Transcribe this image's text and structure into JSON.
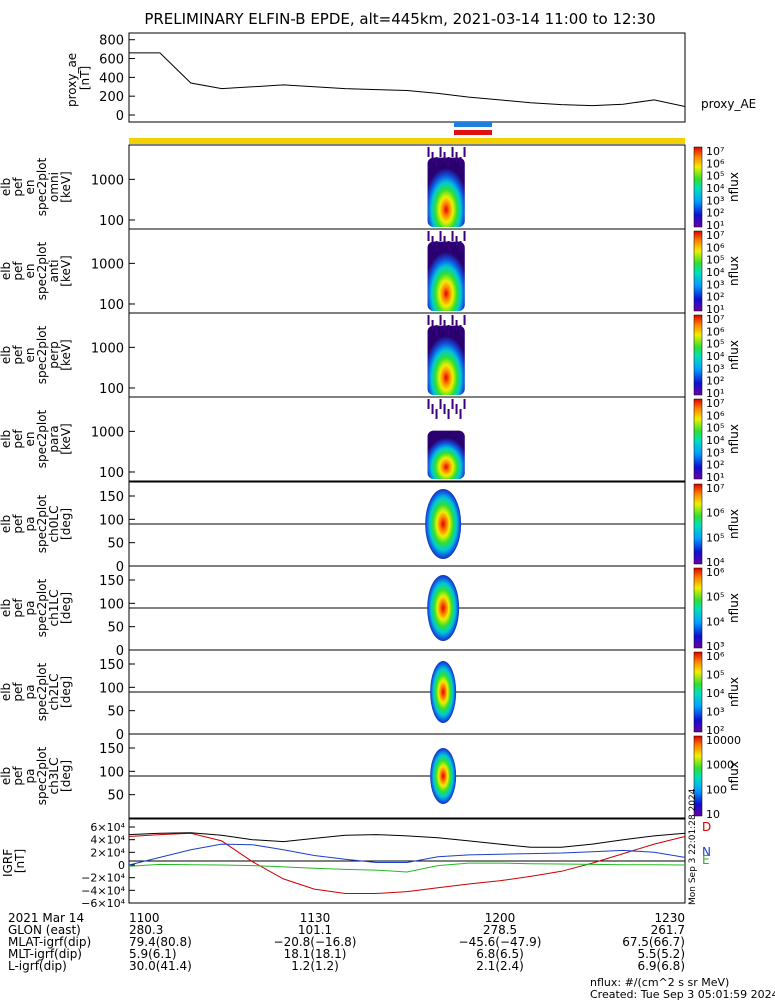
{
  "title": "PRELIMINARY ELFIN-B EPDE, alt=445km, 2021-03-14 11:00 to 12:30",
  "ae_panel": {
    "ylabel_lines": [
      "proxy_ae",
      "[nT]"
    ],
    "right_label": "proxy_AE",
    "ticks": [
      "800",
      "600",
      "400",
      "200",
      "0"
    ]
  },
  "spectra_panels": [
    {
      "label_lines": [
        "elb",
        "pef",
        "en",
        "spec2plot",
        "omni",
        "[keV]"
      ],
      "ticks": [
        "1000",
        "100"
      ],
      "cbar_ticks": [
        "10⁷",
        "10⁶",
        "10⁵",
        "10⁴",
        "10³",
        "10²",
        "10¹"
      ],
      "cbar_unit": "nflux"
    },
    {
      "label_lines": [
        "elb",
        "pef",
        "en",
        "spec2plot",
        "anti",
        "[keV]"
      ],
      "ticks": [
        "1000",
        "100"
      ],
      "cbar_ticks": [
        "10⁷",
        "10⁶",
        "10⁵",
        "10⁴",
        "10³",
        "10²",
        "10¹"
      ],
      "cbar_unit": "nflux"
    },
    {
      "label_lines": [
        "elb",
        "pef",
        "en",
        "spec2plot",
        "perp",
        "[keV]"
      ],
      "ticks": [
        "1000",
        "100"
      ],
      "cbar_ticks": [
        "10⁷",
        "10⁶",
        "10⁵",
        "10⁴",
        "10³",
        "10²",
        "10¹"
      ],
      "cbar_unit": "nflux"
    },
    {
      "label_lines": [
        "elb",
        "pef",
        "en",
        "spec2plot",
        "para",
        "[keV]"
      ],
      "ticks": [
        "1000",
        "100"
      ],
      "cbar_ticks": [
        "10⁷",
        "10⁶",
        "10⁵",
        "10⁴",
        "10³",
        "10²",
        "10¹"
      ],
      "cbar_unit": "nflux"
    },
    {
      "label_lines": [
        "elb",
        "pef",
        "pa",
        "spec2plot",
        "ch0LC",
        "[deg]"
      ],
      "ticks": [
        "150",
        "100",
        "50",
        "0"
      ],
      "cbar_ticks": [
        "10⁷",
        "10⁶",
        "10⁵",
        "10⁴"
      ],
      "cbar_unit": "nflux"
    },
    {
      "label_lines": [
        "elb",
        "pef",
        "pa",
        "spec2plot",
        "ch1LC",
        "[deg]"
      ],
      "ticks": [
        "150",
        "100",
        "50",
        "0"
      ],
      "cbar_ticks": [
        "10⁶",
        "10⁵",
        "10⁴",
        "10³"
      ],
      "cbar_unit": "nflux"
    },
    {
      "label_lines": [
        "elb",
        "pef",
        "pa",
        "spec2plot",
        "ch2LC",
        "[deg]"
      ],
      "ticks": [
        "150",
        "100",
        "50",
        "0"
      ],
      "cbar_ticks": [
        "10⁶",
        "10⁵",
        "10⁴",
        "10³",
        "10²"
      ],
      "cbar_unit": "nflux"
    },
    {
      "label_lines": [
        "elb",
        "pef",
        "pa",
        "spec2plot",
        "ch3LC",
        "[deg]"
      ],
      "ticks": [
        "150",
        "100",
        "50"
      ],
      "cbar_ticks": [
        "10000",
        "1000",
        "100",
        "10"
      ],
      "cbar_unit": "nflux"
    }
  ],
  "igrf_panel": {
    "ylabel_lines": [
      "IGRF",
      "[nT]"
    ],
    "ticks": [
      "6×10⁴",
      "4×10⁴",
      "2×10⁴",
      "0",
      "−2×10⁴",
      "−4×10⁴",
      "−6×10⁴"
    ],
    "legend": [
      {
        "name": "D",
        "color": "#cc0000"
      },
      {
        "name": "N",
        "color": "#1a3fcc"
      },
      {
        "name": "E",
        "color": "#22bb22"
      }
    ],
    "stamp": "Mon Sep  3 22:01:28 2024"
  },
  "footer": {
    "rows": [
      {
        "label": "2021 Mar 14",
        "values": [
          "1100",
          "1130",
          "1200",
          "1230"
        ]
      },
      {
        "label": "GLON (east)",
        "values": [
          "280.3",
          "101.1",
          "278.5",
          "261.7"
        ]
      },
      {
        "label": "MLAT-igrf(dip)",
        "values": [
          "79.4(80.8)",
          "−20.8(−16.8)",
          "−45.6(−47.9)",
          "67.5(66.7)"
        ]
      },
      {
        "label": "MLT-igrf(dip)",
        "values": [
          "5.9(6.1)",
          "18.1(18.1)",
          "6.8(6.5)",
          "5.5(5.2)"
        ]
      },
      {
        "label": "L-igrf(dip)",
        "values": [
          "30.0(41.4)",
          "1.2(1.2)",
          "2.1(2.4)",
          "6.9(6.8)"
        ]
      }
    ],
    "note1": "nflux: #/(cm^2 s sr MeV)",
    "note2": "Created: Tue Sep  3 05:01:59 2024"
  },
  "colors": {
    "yellow_bar": "#f5d000",
    "blue_bar": "#1e7fe0",
    "red_bar": "#e01010"
  },
  "chart_data": [
    {
      "type": "line",
      "title": "PRELIMINARY ELFIN-B EPDE, alt=445km, 2021-03-14 11:00 to 12:30",
      "ylabel": "proxy_ae [nT]",
      "ylim": [
        0,
        850
      ],
      "series": [
        {
          "name": "proxy_AE",
          "x": [
            "11:00",
            "11:05",
            "11:10",
            "11:15",
            "11:20",
            "11:25",
            "11:30",
            "11:35",
            "11:40",
            "11:45",
            "11:50",
            "11:55",
            "12:00",
            "12:05",
            "12:10",
            "12:15",
            "12:20",
            "12:25",
            "12:30"
          ],
          "values": [
            660,
            660,
            340,
            280,
            300,
            320,
            300,
            280,
            270,
            260,
            230,
            190,
            160,
            130,
            110,
            100,
            115,
            160,
            90
          ]
        }
      ]
    },
    {
      "type": "heatmap",
      "name": "omni",
      "ylabel": "[keV]",
      "yscale": "log",
      "ylim": [
        60,
        7000
      ],
      "time_range": [
        "11:48",
        "11:55"
      ],
      "zlim": [
        "1e1",
        "1e7"
      ]
    },
    {
      "type": "heatmap",
      "name": "anti",
      "ylabel": "[keV]",
      "yscale": "log",
      "ylim": [
        60,
        7000
      ],
      "time_range": [
        "11:48",
        "11:55"
      ],
      "zlim": [
        "1e1",
        "1e7"
      ]
    },
    {
      "type": "heatmap",
      "name": "perp",
      "ylabel": "[keV]",
      "yscale": "log",
      "ylim": [
        60,
        7000
      ],
      "time_range": [
        "11:48",
        "11:55"
      ],
      "zlim": [
        "1e1",
        "1e7"
      ]
    },
    {
      "type": "heatmap",
      "name": "para",
      "ylabel": "[keV]",
      "yscale": "log",
      "ylim": [
        60,
        7000
      ],
      "time_range": [
        "11:48",
        "11:55"
      ],
      "zlim": [
        "1e1",
        "1e7"
      ]
    },
    {
      "type": "heatmap",
      "name": "ch0LC",
      "ylabel": "[deg]",
      "ylim": [
        0,
        180
      ],
      "time_range": [
        "11:48",
        "11:55"
      ]
    },
    {
      "type": "heatmap",
      "name": "ch1LC",
      "ylabel": "[deg]",
      "ylim": [
        0,
        180
      ],
      "time_range": [
        "11:48",
        "11:55"
      ]
    },
    {
      "type": "heatmap",
      "name": "ch2LC",
      "ylabel": "[deg]",
      "ylim": [
        0,
        180
      ],
      "time_range": [
        "11:48",
        "11:55"
      ]
    },
    {
      "type": "heatmap",
      "name": "ch3LC",
      "ylabel": "[deg]",
      "ylim": [
        0,
        180
      ],
      "time_range": [
        "11:48",
        "11:55"
      ]
    },
    {
      "type": "line",
      "ylabel": "IGRF [nT]",
      "ylim": [
        -60000,
        60000
      ],
      "x": [
        "11:00",
        "11:05",
        "11:10",
        "11:15",
        "11:20",
        "11:25",
        "11:30",
        "11:35",
        "11:40",
        "11:45",
        "11:50",
        "11:55",
        "12:00",
        "12:05",
        "12:10",
        "12:15",
        "12:20",
        "12:25",
        "12:30"
      ],
      "series": [
        {
          "name": "D",
          "values": [
            45000,
            48000,
            50000,
            38000,
            5000,
            -22000,
            -38000,
            -45000,
            -45000,
            -42000,
            -36000,
            -30000,
            -25000,
            -18000,
            -10000,
            3000,
            18000,
            33000,
            45000
          ]
        },
        {
          "name": "N",
          "values": [
            0,
            12000,
            24000,
            33000,
            32000,
            24000,
            15000,
            9000,
            4000,
            4000,
            13000,
            16000,
            17000,
            18000,
            19000,
            21000,
            23000,
            20000,
            12000
          ]
        },
        {
          "name": "E",
          "values": [
            -2000,
            1000,
            500,
            0,
            -1000,
            -3000,
            -5000,
            -7000,
            -8000,
            -11000,
            -1000,
            3000,
            3000,
            2000,
            1500,
            1000,
            500,
            300,
            0
          ]
        }
      ]
    }
  ]
}
